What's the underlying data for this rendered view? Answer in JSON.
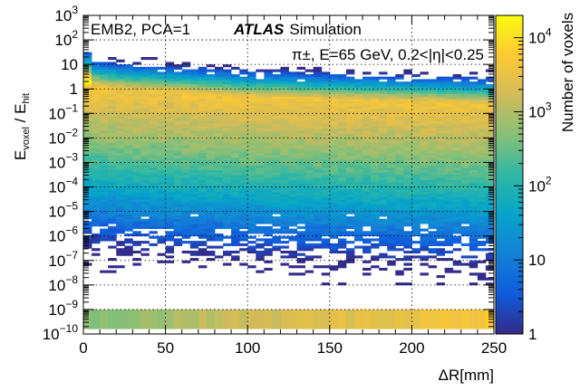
{
  "chart_data": {
    "type": "heatmap",
    "xlabel": "ΔR[mm]",
    "ylabel": {
      "E": "E",
      "sub1": "voxel",
      "sep": " / E",
      "sub2": "hit"
    },
    "zlabel": "Number of voxels",
    "xlim": [
      0,
      250
    ],
    "ylim_log10": [
      -10,
      3
    ],
    "y_scale": "log",
    "z_scale": "log",
    "zlim": [
      1,
      20000
    ],
    "grid": true,
    "x_ticks": [
      "0",
      "50",
      "100",
      "150",
      "200",
      "250"
    ],
    "y_ticks": [
      {
        "base": "10",
        "exp": "3"
      },
      {
        "base": "10",
        "exp": "2"
      },
      {
        "base": "10",
        "exp": ""
      },
      {
        "base": "1",
        "exp": ""
      },
      {
        "base": "10",
        "exp": "−1"
      },
      {
        "base": "10",
        "exp": "−2"
      },
      {
        "base": "10",
        "exp": "−3"
      },
      {
        "base": "10",
        "exp": "−4"
      },
      {
        "base": "10",
        "exp": "−5"
      },
      {
        "base": "10",
        "exp": "−6"
      },
      {
        "base": "10",
        "exp": "−7"
      },
      {
        "base": "10",
        "exp": "−8"
      },
      {
        "base": "10",
        "exp": "−9"
      },
      {
        "base": "10",
        "exp": "−10"
      }
    ],
    "z_ticks": [
      {
        "base": "10",
        "exp": "4"
      },
      {
        "base": "10",
        "exp": "3"
      },
      {
        "base": "10",
        "exp": "2"
      },
      {
        "base": "10",
        "exp": ""
      },
      {
        "base": "1",
        "exp": ""
      }
    ],
    "annotations": {
      "left": "EMB2, PCA=1",
      "atlas": "ATLAS",
      "atlas_suffix": "Simulation",
      "sample": "π±, E=65 GeV, 0.2<|η|<0.25"
    },
    "distribution": {
      "ridge_log10": [
        [
          0,
          0.2
        ],
        [
          25,
          0.0
        ],
        [
          100,
          -0.3
        ],
        [
          250,
          -0.6
        ]
      ],
      "bottom_row_density_log10": [
        [
          0,
          2.6
        ],
        [
          100,
          3.2
        ],
        [
          250,
          3.7
        ]
      ]
    }
  },
  "colors": {
    "palette": [
      "#352a87",
      "#0f5cdd",
      "#1481d6",
      "#06a4ca",
      "#2eb7a4",
      "#87bf77",
      "#d1bb59",
      "#fec832",
      "#f9fb0e"
    ]
  }
}
